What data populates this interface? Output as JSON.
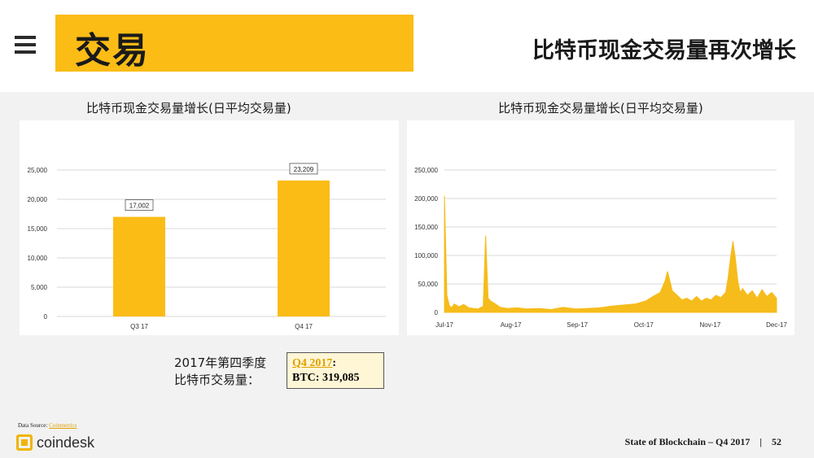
{
  "header": {
    "title": "交易",
    "subtitle": "比特币现金交易量再次增长"
  },
  "colors": {
    "accent": "#fbbc16",
    "bar": "#fbbc16",
    "area": "#f6bc1b"
  },
  "chart_data": [
    {
      "type": "bar",
      "title": "比特币现金交易量增长(日平均交易量)",
      "categories": [
        "Q3 17",
        "Q4 17"
      ],
      "values": [
        17002,
        23209
      ],
      "data_labels": [
        "17,002",
        "23,209"
      ],
      "ylim": [
        0,
        25000
      ],
      "yticks": [
        0,
        5000,
        10000,
        15000,
        20000,
        25000
      ],
      "ytick_labels": [
        "0",
        "5,000",
        "10,000",
        "15,000",
        "20,000",
        "25,000"
      ],
      "grid": true
    },
    {
      "type": "area",
      "title": "比特币现金交易量增长(日平均交易量)",
      "ylim": [
        0,
        250000
      ],
      "yticks": [
        0,
        50000,
        100000,
        150000,
        200000,
        250000
      ],
      "ytick_labels": [
        "0",
        "50,000",
        "100,000",
        "150,000",
        "200,000",
        "250,000"
      ],
      "xtick_labels": [
        "Jul-17",
        "Aug-17",
        "Sep-17",
        "Oct-17",
        "Nov-17",
        "Dec-17"
      ],
      "grid": true,
      "series": [
        {
          "points": [
            [
              "2017-07-31",
              205000
            ],
            [
              "2017-08-01",
              30000
            ],
            [
              "2017-08-02",
              12000
            ],
            [
              "2017-08-03",
              8000
            ],
            [
              "2017-08-04",
              15000
            ],
            [
              "2017-08-06",
              10000
            ],
            [
              "2017-08-08",
              14000
            ],
            [
              "2017-08-10",
              8000
            ],
            [
              "2017-08-12",
              7000
            ],
            [
              "2017-08-14",
              6000
            ],
            [
              "2017-08-15",
              9000
            ],
            [
              "2017-08-16",
              10000
            ],
            [
              "2017-08-17",
              135000
            ],
            [
              "2017-08-18",
              25000
            ],
            [
              "2017-08-19",
              20000
            ],
            [
              "2017-08-21",
              15000
            ],
            [
              "2017-08-23",
              9000
            ],
            [
              "2017-08-26",
              7000
            ],
            [
              "2017-08-30",
              8000
            ],
            [
              "2017-09-03",
              6000
            ],
            [
              "2017-09-08",
              7000
            ],
            [
              "2017-09-13",
              5000
            ],
            [
              "2017-09-18",
              9000
            ],
            [
              "2017-09-23",
              6000
            ],
            [
              "2017-09-28",
              7000
            ],
            [
              "2017-10-03",
              8000
            ],
            [
              "2017-10-08",
              11000
            ],
            [
              "2017-10-13",
              13000
            ],
            [
              "2017-10-18",
              15000
            ],
            [
              "2017-10-22",
              20000
            ],
            [
              "2017-10-25",
              28000
            ],
            [
              "2017-10-28",
              35000
            ],
            [
              "2017-10-30",
              55000
            ],
            [
              "2017-10-31",
              72000
            ],
            [
              "2017-11-01",
              55000
            ],
            [
              "2017-11-02",
              38000
            ],
            [
              "2017-11-04",
              30000
            ],
            [
              "2017-11-06",
              22000
            ],
            [
              "2017-11-08",
              25000
            ],
            [
              "2017-11-10",
              20000
            ],
            [
              "2017-11-12",
              28000
            ],
            [
              "2017-11-14",
              20000
            ],
            [
              "2017-11-16",
              25000
            ],
            [
              "2017-11-18",
              22000
            ],
            [
              "2017-11-20",
              30000
            ],
            [
              "2017-11-22",
              26000
            ],
            [
              "2017-11-24",
              35000
            ],
            [
              "2017-11-25",
              60000
            ],
            [
              "2017-11-26",
              95000
            ],
            [
              "2017-11-27",
              125000
            ],
            [
              "2017-11-28",
              95000
            ],
            [
              "2017-11-29",
              55000
            ],
            [
              "2017-11-30",
              35000
            ],
            [
              "2017-12-01",
              42000
            ],
            [
              "2017-12-03",
              30000
            ],
            [
              "2017-12-05",
              38000
            ],
            [
              "2017-12-07",
              25000
            ],
            [
              "2017-12-09",
              40000
            ],
            [
              "2017-12-11",
              28000
            ],
            [
              "2017-12-13",
              35000
            ],
            [
              "2017-12-15",
              25000
            ]
          ]
        }
      ]
    }
  ],
  "note": {
    "label_line1": "2017年第四季度",
    "label_line2": "比特币交易量：",
    "box_link": "Q4 2017",
    "box_colon": ":",
    "box_value": "BTC: 319,085"
  },
  "source": {
    "prefix": "Data Source: ",
    "link": "Coinmetrics"
  },
  "logo_text": "coindesk",
  "footer": {
    "text": "State of Blockchain – Q4 2017",
    "separator": "|",
    "page": "52"
  }
}
